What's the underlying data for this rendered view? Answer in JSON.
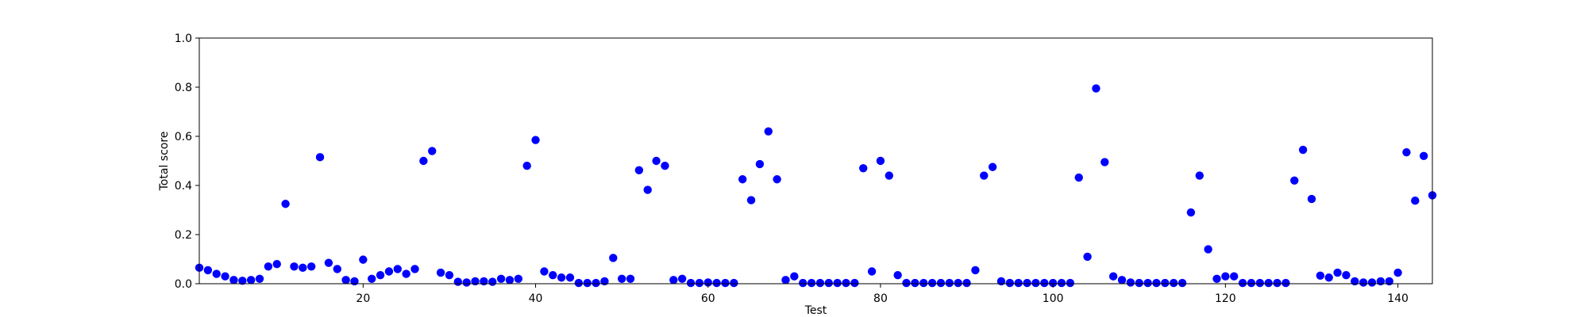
{
  "chart_data": {
    "type": "scatter",
    "title": "",
    "xlabel": "Test",
    "ylabel": "Total score",
    "xlim": [
      1,
      144
    ],
    "ylim": [
      0.0,
      1.0
    ],
    "x_ticks": [
      20,
      40,
      60,
      80,
      100,
      120,
      140
    ],
    "y_ticks": [
      0.0,
      0.2,
      0.4,
      0.6,
      0.8,
      1.0
    ],
    "x_tick_labels": [
      "20",
      "40",
      "60",
      "80",
      "100",
      "120",
      "140"
    ],
    "y_tick_labels": [
      "0.0",
      "0.2",
      "0.4",
      "0.6",
      "0.8",
      "1.0"
    ],
    "grid": false,
    "marker_color": "#0000ff",
    "series": [
      {
        "x": [
          1,
          2,
          3,
          4,
          5,
          6,
          7,
          8,
          9,
          10,
          11,
          12,
          13,
          14,
          15,
          16,
          17,
          18,
          19,
          20,
          21,
          22,
          23,
          24,
          25,
          26,
          27,
          28,
          29,
          30,
          31,
          32,
          33,
          34,
          35,
          36,
          37,
          38,
          39,
          40,
          41,
          42,
          43,
          44,
          45,
          46,
          47,
          48,
          49,
          50,
          51,
          52,
          53,
          54,
          55,
          56,
          57,
          58,
          59,
          60,
          61,
          62,
          63,
          64,
          65,
          66,
          67,
          68,
          69,
          70,
          71,
          72,
          73,
          74,
          75,
          76,
          77,
          78,
          79,
          80,
          81,
          82,
          83,
          84,
          85,
          86,
          87,
          88,
          89,
          90,
          91,
          92,
          93,
          94,
          95,
          96,
          97,
          98,
          99,
          100,
          101,
          102,
          103,
          104,
          105,
          106,
          107,
          108,
          109,
          110,
          111,
          112,
          113,
          114,
          115,
          116,
          117,
          118,
          119,
          120,
          121,
          122,
          123,
          124,
          125,
          126,
          127,
          128,
          129,
          130,
          131,
          132,
          133,
          134,
          135,
          136,
          137,
          138,
          139,
          140,
          141,
          142,
          143,
          144
        ],
        "y": [
          0.065,
          0.055,
          0.04,
          0.03,
          0.015,
          0.012,
          0.015,
          0.02,
          0.07,
          0.08,
          0.325,
          0.07,
          0.065,
          0.07,
          0.515,
          0.085,
          0.06,
          0.015,
          0.01,
          0.098,
          0.02,
          0.035,
          0.05,
          0.06,
          0.04,
          0.06,
          0.5,
          0.54,
          0.045,
          0.035,
          0.008,
          0.005,
          0.01,
          0.01,
          0.008,
          0.02,
          0.015,
          0.02,
          0.48,
          0.585,
          0.05,
          0.035,
          0.025,
          0.025,
          0.003,
          0.003,
          0.003,
          0.01,
          0.105,
          0.02,
          0.02,
          0.462,
          0.382,
          0.5,
          0.48,
          0.015,
          0.02,
          0.003,
          0.003,
          0.005,
          0.003,
          0.003,
          0.003,
          0.425,
          0.34,
          0.487,
          0.62,
          0.425,
          0.015,
          0.03,
          0.003,
          0.003,
          0.003,
          0.003,
          0.003,
          0.003,
          0.003,
          0.47,
          0.05,
          0.5,
          0.44,
          0.035,
          0.003,
          0.003,
          0.003,
          0.003,
          0.003,
          0.003,
          0.003,
          0.003,
          0.055,
          0.44,
          0.475,
          0.01,
          0.003,
          0.003,
          0.003,
          0.003,
          0.003,
          0.003,
          0.003,
          0.003,
          0.432,
          0.11,
          0.795,
          0.495,
          0.03,
          0.015,
          0.005,
          0.003,
          0.003,
          0.003,
          0.003,
          0.003,
          0.003,
          0.29,
          0.44,
          0.14,
          0.02,
          0.03,
          0.03,
          0.003,
          0.003,
          0.003,
          0.003,
          0.003,
          0.003,
          0.42,
          0.545,
          0.345,
          0.033,
          0.025,
          0.045,
          0.035,
          0.01,
          0.005,
          0.005,
          0.01,
          0.01,
          0.045,
          0.535,
          0.338,
          0.52,
          0.36
        ]
      }
    ]
  }
}
